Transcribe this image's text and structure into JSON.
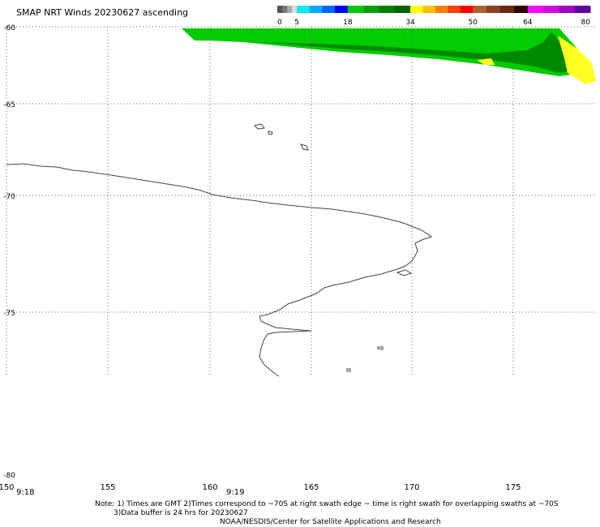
{
  "title": "SMAP NRT Winds 20230627 ascending",
  "colorbar": {
    "segments": [
      {
        "from": 0,
        "to": 5,
        "colors": [
          "#555555",
          "#777777",
          "#aaaaaa",
          "#dddddd"
        ]
      },
      {
        "from": 5,
        "to": 18,
        "colors": [
          "#00eeee",
          "#00aaff",
          "#0066ff",
          "#0000ff"
        ]
      },
      {
        "from": 18,
        "to": 34,
        "colors": [
          "#00c800",
          "#00a000",
          "#008000",
          "#006400"
        ]
      },
      {
        "from": 34,
        "to": 50,
        "colors": [
          "#ffff00",
          "#ffc000",
          "#ff8000",
          "#ff4000",
          "#ff0000"
        ]
      },
      {
        "from": 50,
        "to": 64,
        "colors": [
          "#b06030",
          "#8c4020",
          "#6a2810",
          "#300000"
        ]
      },
      {
        "from": 64,
        "to": 80,
        "colors": [
          "#ff00ff",
          "#d000e0",
          "#a000c0",
          "#6000a0"
        ]
      }
    ],
    "tick_labels": [
      "0",
      "5",
      "18",
      "34",
      "50",
      "64",
      "80"
    ]
  },
  "latitude_labels": [
    "-60",
    "-65",
    "-70",
    "-75",
    "-80"
  ],
  "longitude_labels": [
    "150",
    "155",
    "160",
    "165",
    "170",
    "175"
  ],
  "time_labels": [
    "9:18",
    "9:19"
  ],
  "footer": {
    "note_line1": "Note: 1) Times are GMT 2)Times correspond to ~70S at right swath edge ~ time is right swath for overlapping swaths at ~70S",
    "note_line2": "3)Data buffer is 24 hrs for 20230627",
    "credit": "NOAA/NESDIS/Center for Satellite Applications and Research"
  },
  "swath": {
    "wind_bands_kt": [
      18,
      34
    ],
    "colors": {
      "light_green": "#00cc00",
      "dark_green": "#008800",
      "yellow": "#ffff22"
    }
  },
  "coast_color": "#444444",
  "grid_color": "#666666"
}
